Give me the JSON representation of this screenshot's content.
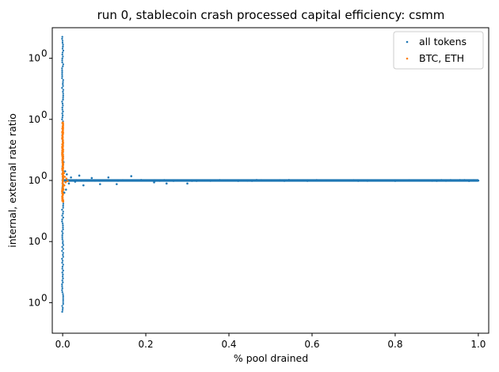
{
  "chart_data": {
    "type": "scatter",
    "title": "run 0, stablecoin crash processed capital efficiency: csmm",
    "xlabel": "% pool drained",
    "ylabel": "internal, external rate ratio",
    "xlim": [
      -0.025,
      1.025
    ],
    "ylim": [
      0.975,
      1.025
    ],
    "x_ticks": [
      0.0,
      0.2,
      0.4,
      0.6,
      0.8,
      1.0
    ],
    "x_tick_labels": [
      "0.0",
      "0.2",
      "0.4",
      "0.6",
      "0.8",
      "1.0"
    ],
    "y_ticks": [
      0.98,
      0.99,
      1.0,
      1.01,
      1.02
    ],
    "y_tick_labels": [
      "10",
      "10",
      "10",
      "10",
      "10"
    ],
    "y_tick_exponent": "0",
    "grid": false,
    "legend_position": "top-right",
    "series": [
      {
        "name": "all tokens",
        "color": "#1f77b4",
        "vertical_spread": {
          "x": 0.0,
          "y_min": 0.9785,
          "y_max": 1.0235
        },
        "band_points": [
          [
            0.002,
            1.003
          ],
          [
            0.004,
            0.998
          ],
          [
            0.006,
            1.0015
          ],
          [
            0.008,
            0.9985
          ],
          [
            0.01,
            1.001
          ],
          [
            0.015,
            0.9995
          ],
          [
            0.02,
            1.0005
          ],
          [
            0.03,
            0.9998
          ],
          [
            0.04,
            1.0008
          ],
          [
            0.05,
            0.9992
          ],
          [
            0.07,
            1.0004
          ],
          [
            0.09,
            0.9994
          ],
          [
            0.11,
            1.0005
          ],
          [
            0.13,
            0.9994
          ],
          [
            0.165,
            1.0007
          ],
          [
            0.22,
            0.9997
          ],
          [
            0.25,
            0.9995
          ],
          [
            0.3,
            0.9995
          ]
        ],
        "flat_line": {
          "y": 1.0,
          "x_min": 0.0,
          "x_max": 1.0
        }
      },
      {
        "name": "BTC, ETH",
        "color": "#ff7f0e",
        "vertical_spread": {
          "x": 0.0,
          "y_min": 0.9965,
          "y_max": 1.0095
        },
        "band_points": [
          [
            0.001,
            1.0025
          ],
          [
            0.002,
            0.9985
          ],
          [
            0.003,
            1.0012
          ],
          [
            0.004,
            0.9992
          ],
          [
            0.005,
            1.0006
          ],
          [
            0.007,
            0.9997
          ],
          [
            0.009,
            1.0003
          ],
          [
            0.012,
            0.9999
          ]
        ]
      }
    ]
  }
}
